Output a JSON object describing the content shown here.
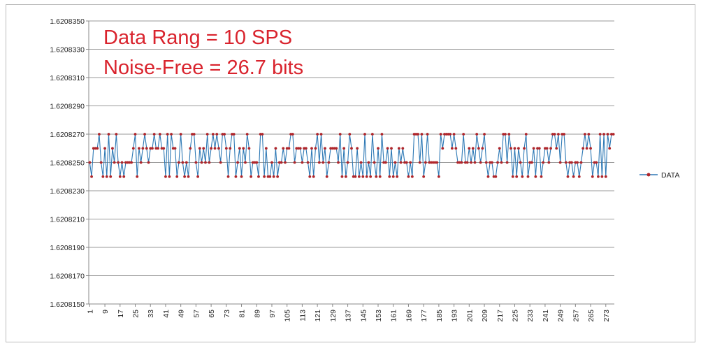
{
  "chart_data": {
    "type": "line",
    "title": "",
    "xlabel": "",
    "ylabel": "",
    "annotations": [
      "Data Rang = 10 SPS",
      "Noise-Free = 26.7 bits"
    ],
    "ylim": [
      1.620815,
      1.620835
    ],
    "yticks": [
      "1.6208350",
      "1.6208330",
      "1.6208310",
      "1.6208290",
      "1.6208270",
      "1.6208250",
      "1.6208230",
      "1.6208210",
      "1.6208190",
      "1.6208170",
      "1.6208150"
    ],
    "xtick_labels": [
      "1",
      "9",
      "17",
      "25",
      "33",
      "41",
      "49",
      "57",
      "65",
      "73",
      "81",
      "89",
      "97",
      "105",
      "113",
      "121",
      "129",
      "137",
      "145",
      "153",
      "161",
      "169",
      "177",
      "185",
      "193",
      "201",
      "209",
      "217",
      "225",
      "233",
      "241",
      "249",
      "257",
      "265",
      "273"
    ],
    "legend_position": "right",
    "series": [
      {
        "name": "DATA",
        "color": "#2e79b5",
        "marker_color": "#b0262b",
        "x_start": 1,
        "values": [
          1.620825,
          1.620824,
          1.620826,
          1.620826,
          1.620826,
          1.620827,
          1.620825,
          1.620824,
          1.620826,
          1.620824,
          1.620827,
          1.620824,
          1.620826,
          1.620825,
          1.620827,
          1.620825,
          1.620824,
          1.620825,
          1.620824,
          1.620825,
          1.620825,
          1.620825,
          1.620825,
          1.620826,
          1.620827,
          1.620824,
          1.620826,
          1.620825,
          1.620826,
          1.620827,
          1.620826,
          1.620825,
          1.620826,
          1.620826,
          1.620827,
          1.620826,
          1.620826,
          1.620827,
          1.620826,
          1.620826,
          1.620824,
          1.620827,
          1.620824,
          1.620827,
          1.620826,
          1.620826,
          1.620824,
          1.620825,
          1.620827,
          1.620825,
          1.620824,
          1.620825,
          1.620824,
          1.620826,
          1.620827,
          1.620827,
          1.620825,
          1.620824,
          1.620826,
          1.620825,
          1.620826,
          1.620825,
          1.620827,
          1.620825,
          1.620826,
          1.620827,
          1.620826,
          1.620827,
          1.620826,
          1.620825,
          1.620827,
          1.620827,
          1.620826,
          1.620824,
          1.620826,
          1.620827,
          1.620827,
          1.620824,
          1.620825,
          1.620826,
          1.620824,
          1.620826,
          1.620825,
          1.620827,
          1.620826,
          1.620824,
          1.620825,
          1.620825,
          1.620825,
          1.620824,
          1.620827,
          1.620827,
          1.620824,
          1.620826,
          1.620824,
          1.620824,
          1.620825,
          1.620824,
          1.620826,
          1.620824,
          1.620825,
          1.620825,
          1.620826,
          1.620825,
          1.620826,
          1.620826,
          1.620827,
          1.620827,
          1.620825,
          1.620826,
          1.620826,
          1.620826,
          1.620825,
          1.620826,
          1.620826,
          1.620825,
          1.620824,
          1.620826,
          1.620824,
          1.620826,
          1.620827,
          1.620825,
          1.620827,
          1.620825,
          1.620826,
          1.620824,
          1.620825,
          1.620826,
          1.620826,
          1.620826,
          1.620826,
          1.620825,
          1.620827,
          1.620824,
          1.620826,
          1.620824,
          1.620825,
          1.620827,
          1.620826,
          1.620824,
          1.620824,
          1.620826,
          1.620824,
          1.620825,
          1.620824,
          1.620827,
          1.620824,
          1.620825,
          1.620824,
          1.620827,
          1.620825,
          1.620824,
          1.620826,
          1.620824,
          1.620827,
          1.620825,
          1.620825,
          1.620826,
          1.620824,
          1.620826,
          1.620824,
          1.620825,
          1.620824,
          1.620826,
          1.620825,
          1.620826,
          1.620825,
          1.620825,
          1.620824,
          1.620825,
          1.620824,
          1.620827,
          1.620827,
          1.620827,
          1.620825,
          1.620827,
          1.620824,
          1.620825,
          1.620827,
          1.620825,
          1.620825,
          1.620825,
          1.620825,
          1.620825,
          1.620824,
          1.620827,
          1.620826,
          1.620827,
          1.620827,
          1.620827,
          1.620827,
          1.620826,
          1.620827,
          1.620826,
          1.620825,
          1.620825,
          1.620825,
          1.620827,
          1.620825,
          1.620825,
          1.620826,
          1.620825,
          1.620826,
          1.620825,
          1.620827,
          1.620826,
          1.620825,
          1.620826,
          1.620827,
          1.620825,
          1.620824,
          1.620825,
          1.620825,
          1.620824,
          1.620824,
          1.620825,
          1.620826,
          1.620825,
          1.620827,
          1.620827,
          1.620825,
          1.620827,
          1.620826,
          1.620824,
          1.620826,
          1.620824,
          1.620826,
          1.620825,
          1.620824,
          1.620826,
          1.620827,
          1.620824,
          1.620825,
          1.620825,
          1.620826,
          1.620824,
          1.620826,
          1.620826,
          1.620824,
          1.620825,
          1.620826,
          1.620826,
          1.620825,
          1.620826,
          1.620827,
          1.620827,
          1.620826,
          1.620827,
          1.620825,
          1.620827,
          1.620827,
          1.620825,
          1.620824,
          1.620825,
          1.620825,
          1.620824,
          1.620825,
          1.620825,
          1.620824,
          1.620825,
          1.620826,
          1.620827,
          1.620826,
          1.620827,
          1.620826,
          1.620824,
          1.620825,
          1.620825,
          1.620824,
          1.620827,
          1.620824,
          1.620827,
          1.620824,
          1.620827,
          1.620826,
          1.620827,
          1.620827
        ]
      }
    ]
  }
}
